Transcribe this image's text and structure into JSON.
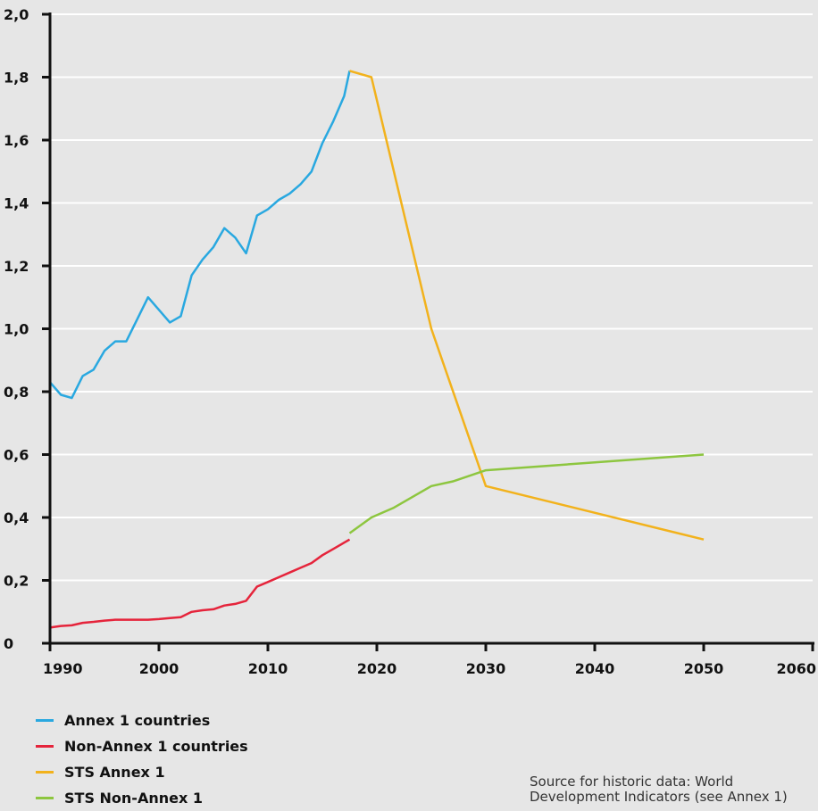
{
  "chart_data": {
    "type": "line",
    "xlim": [
      1990,
      2060
    ],
    "ylim": [
      0,
      2.0
    ],
    "grid": true,
    "x_ticks": [
      {
        "value": 1990,
        "label": "1990"
      },
      {
        "value": 2000,
        "label": "2000"
      },
      {
        "value": 2010,
        "label": "2010"
      },
      {
        "value": 2020,
        "label": "2020"
      },
      {
        "value": 2030,
        "label": "2030"
      },
      {
        "value": 2040,
        "label": "2040"
      },
      {
        "value": 2050,
        "label": "2050"
      },
      {
        "value": 2060,
        "label": "2060"
      }
    ],
    "y_ticks": [
      {
        "value": 0,
        "label": "0"
      },
      {
        "value": 0.2,
        "label": "0,2"
      },
      {
        "value": 0.4,
        "label": "0,4"
      },
      {
        "value": 0.6,
        "label": "0,6"
      },
      {
        "value": 0.8,
        "label": "0,8"
      },
      {
        "value": 1.0,
        "label": "1,0"
      },
      {
        "value": 1.2,
        "label": "1,2"
      },
      {
        "value": 1.4,
        "label": "1,4"
      },
      {
        "value": 1.6,
        "label": "1,6"
      },
      {
        "value": 1.8,
        "label": "1,8"
      },
      {
        "value": 2.0,
        "label": "2,0"
      }
    ],
    "series": [
      {
        "name": "Annex 1 countries",
        "color": "#29a8e0",
        "points": [
          [
            1990,
            0.83
          ],
          [
            1991,
            0.79
          ],
          [
            1992,
            0.78
          ],
          [
            1993,
            0.85
          ],
          [
            1994,
            0.87
          ],
          [
            1995,
            0.93
          ],
          [
            1996,
            0.96
          ],
          [
            1997,
            0.96
          ],
          [
            1998,
            1.03
          ],
          [
            1999,
            1.1
          ],
          [
            2000,
            1.06
          ],
          [
            2001,
            1.02
          ],
          [
            2002,
            1.04
          ],
          [
            2003,
            1.17
          ],
          [
            2004,
            1.22
          ],
          [
            2005,
            1.26
          ],
          [
            2006,
            1.32
          ],
          [
            2007,
            1.29
          ],
          [
            2008,
            1.24
          ],
          [
            2009,
            1.36
          ],
          [
            2010,
            1.38
          ],
          [
            2011,
            1.41
          ],
          [
            2012,
            1.43
          ],
          [
            2013,
            1.46
          ],
          [
            2014,
            1.5
          ],
          [
            2015,
            1.59
          ],
          [
            2016,
            1.66
          ],
          [
            2017,
            1.74
          ],
          [
            2017.5,
            1.82
          ]
        ]
      },
      {
        "name": "Non-Annex 1 countries",
        "color": "#e5243b",
        "points": [
          [
            1990,
            0.05
          ],
          [
            1991,
            0.055
          ],
          [
            1992,
            0.057
          ],
          [
            1993,
            0.065
          ],
          [
            1994,
            0.068
          ],
          [
            1995,
            0.072
          ],
          [
            1996,
            0.075
          ],
          [
            1997,
            0.075
          ],
          [
            1998,
            0.075
          ],
          [
            1999,
            0.075
          ],
          [
            2000,
            0.077
          ],
          [
            2001,
            0.08
          ],
          [
            2002,
            0.083
          ],
          [
            2003,
            0.1
          ],
          [
            2004,
            0.105
          ],
          [
            2005,
            0.108
          ],
          [
            2006,
            0.12
          ],
          [
            2007,
            0.125
          ],
          [
            2008,
            0.135
          ],
          [
            2009,
            0.18
          ],
          [
            2010,
            0.195
          ],
          [
            2011,
            0.21
          ],
          [
            2012,
            0.225
          ],
          [
            2013,
            0.24
          ],
          [
            2014,
            0.255
          ],
          [
            2015,
            0.28
          ],
          [
            2016,
            0.3
          ],
          [
            2017,
            0.32
          ],
          [
            2017.5,
            0.33
          ]
        ]
      },
      {
        "name": "STS Annex 1",
        "color": "#f2b21c",
        "points": [
          [
            2017.5,
            1.82
          ],
          [
            2019.5,
            1.8
          ],
          [
            2025,
            1.0
          ],
          [
            2030,
            0.5
          ],
          [
            2050,
            0.33
          ]
        ]
      },
      {
        "name": "STS Non-Annex 1",
        "color": "#8dc63f",
        "points": [
          [
            2017.5,
            0.35
          ],
          [
            2019.5,
            0.4
          ],
          [
            2021.5,
            0.43
          ],
          [
            2025,
            0.5
          ],
          [
            2027,
            0.515
          ],
          [
            2030,
            0.55
          ],
          [
            2050,
            0.6
          ]
        ]
      }
    ]
  },
  "legend": {
    "items": [
      {
        "label": "Annex 1 countries",
        "color": "#29a8e0"
      },
      {
        "label": "Non-Annex 1 countries",
        "color": "#e5243b"
      },
      {
        "label": "STS Annex 1",
        "color": "#f2b21c"
      },
      {
        "label": "STS Non-Annex 1",
        "color": "#8dc63f"
      }
    ]
  },
  "source_note": "Source for historic data: World Development Indicators (see Annex 1)"
}
